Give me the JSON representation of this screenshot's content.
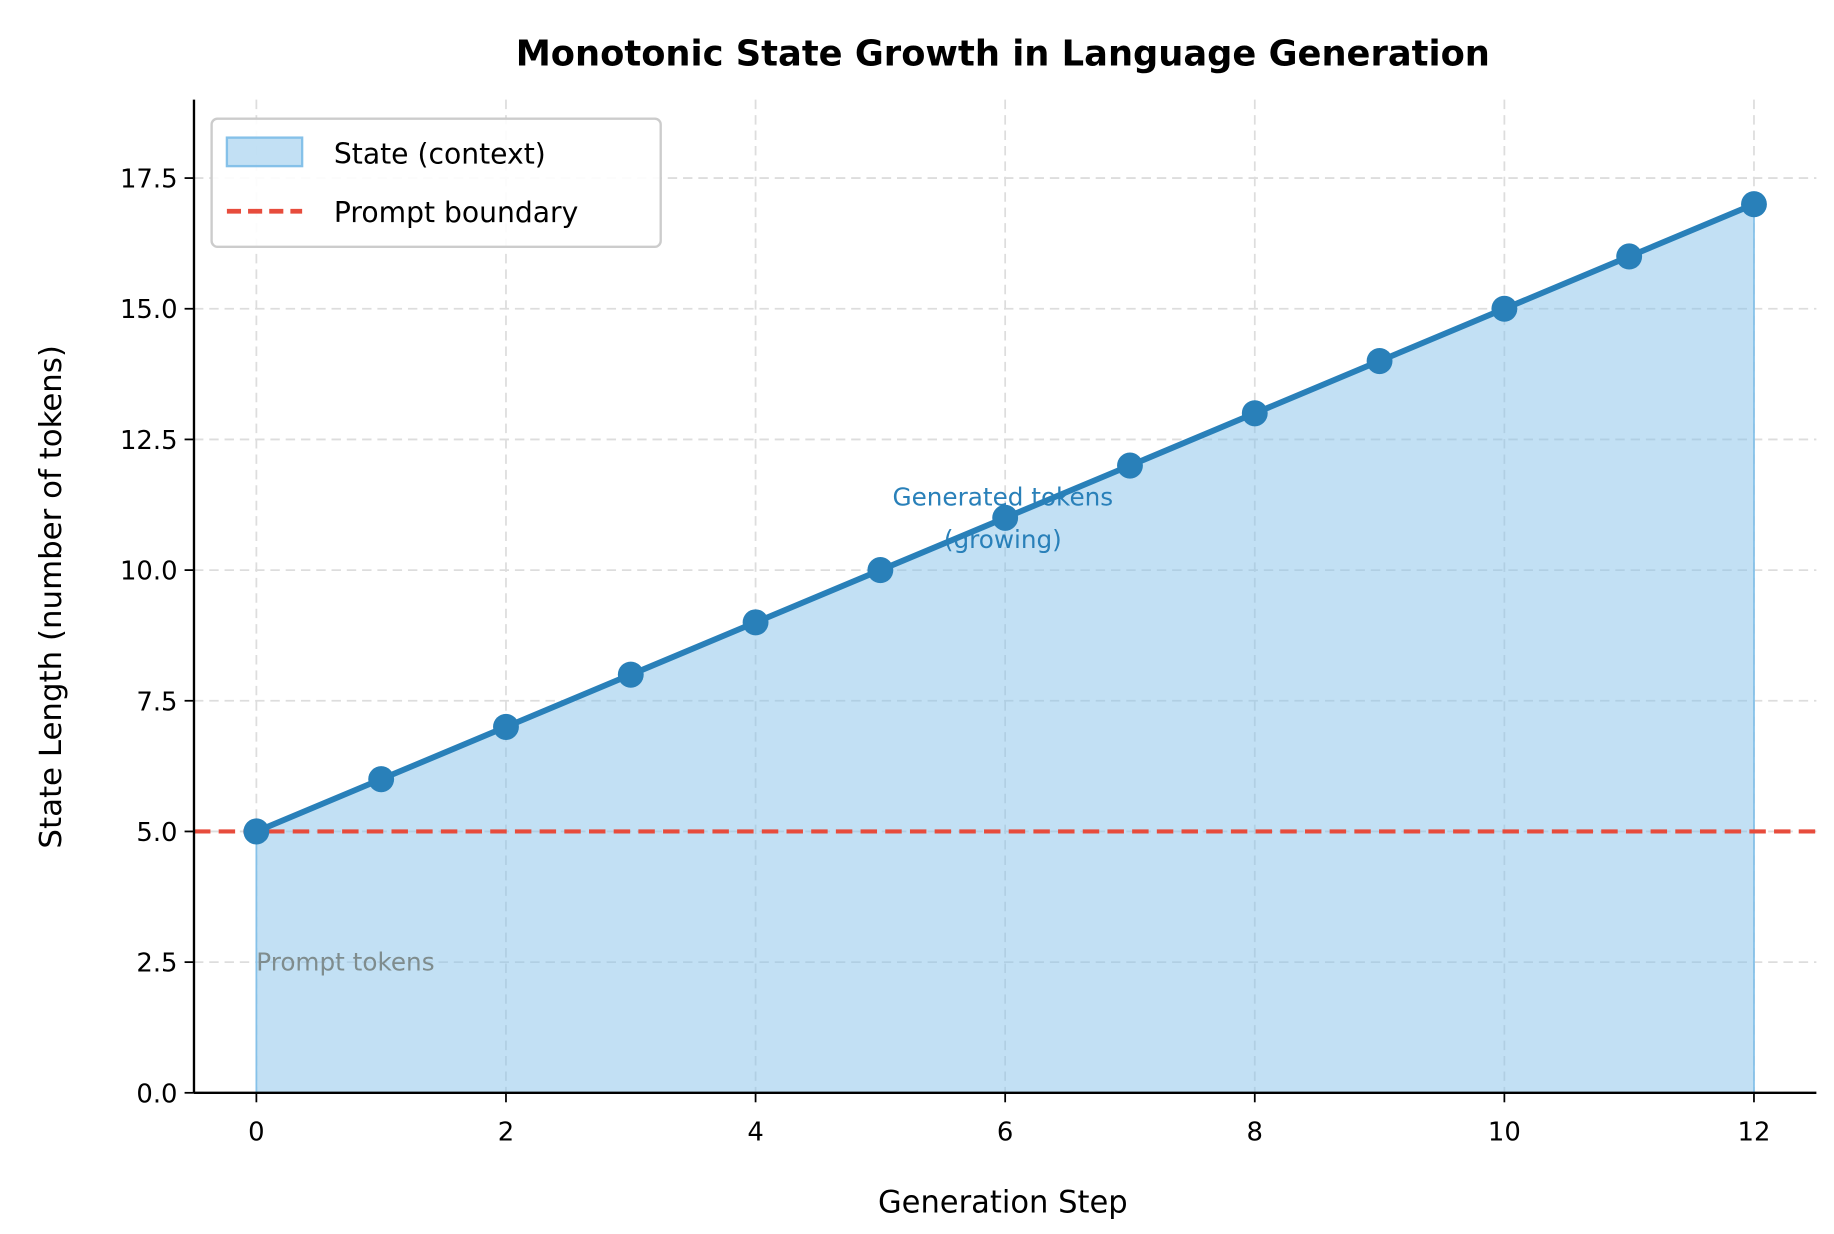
{
  "chart_data": {
    "type": "line",
    "title": "Monotonic State Growth in Language Generation",
    "xlabel": "Generation Step",
    "ylabel": "State Length (number of tokens)",
    "xlim": [
      -0.5,
      12.5
    ],
    "ylim": [
      0,
      19
    ],
    "xticks": [
      "0",
      "2",
      "4",
      "6",
      "8",
      "10",
      "12"
    ],
    "yticks": [
      "0.0",
      "2.5",
      "5.0",
      "7.5",
      "10.0",
      "12.5",
      "15.0",
      "17.5"
    ],
    "grid": true,
    "legend_placement": "top-left",
    "series": [
      {
        "name": "State (context)",
        "type": "area+line",
        "x": [
          0,
          1,
          2,
          3,
          4,
          5,
          6,
          7,
          8,
          9,
          10,
          11,
          12
        ],
        "y": [
          5,
          6,
          7,
          8,
          9,
          10,
          11,
          12,
          13,
          14,
          15,
          16,
          17
        ],
        "line_color": "#2980b9",
        "fill_color": "#85c1e9"
      },
      {
        "name": "Prompt boundary",
        "type": "hline",
        "y": 5,
        "color": "#e74c3c",
        "style": "dashed"
      }
    ],
    "annotations": [
      {
        "text_lines": [
          "Generated tokens",
          "(growing)"
        ],
        "x": 6,
        "y": 11,
        "color": "#2980b9"
      },
      {
        "text": "Prompt tokens",
        "x": 0,
        "y": 2.5,
        "color": "#7f8c8d"
      }
    ]
  }
}
